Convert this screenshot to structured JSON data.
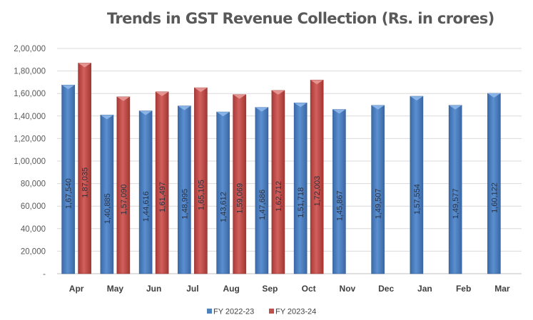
{
  "chart_data": {
    "type": "bar",
    "title": "Trends in GST Revenue Collection (Rs. in crores)",
    "xlabel": "",
    "ylabel": "",
    "ylim": [
      0,
      200000
    ],
    "grid": true,
    "legend_position": "bottom",
    "categories": [
      "Apr",
      "May",
      "Jun",
      "Jul",
      "Aug",
      "Sep",
      "Oct",
      "Nov",
      "Dec",
      "Jan",
      "Feb",
      "Mar"
    ],
    "y_ticks": [
      0,
      20000,
      40000,
      60000,
      80000,
      100000,
      120000,
      140000,
      160000,
      180000,
      200000
    ],
    "y_tick_labels": [
      "-",
      "20,000",
      "40,000",
      "60,000",
      "80,000",
      "1,00,000",
      "1,20,000",
      "1,40,000",
      "1,60,000",
      "1,80,000",
      "2,00,000"
    ],
    "series": [
      {
        "name": "FY 2022-23",
        "color": "#4f81bd",
        "values": [
          167540,
          140885,
          144616,
          148995,
          143612,
          147686,
          151718,
          145867,
          149507,
          157554,
          149577,
          160122
        ],
        "labels": [
          "1,67,540",
          "1,40,885",
          "1,44,616",
          "1,48,995",
          "1,43,612",
          "1,47,686",
          "1,51,718",
          "1,45,867",
          "1,49,507",
          "1,57,554",
          "1,49,577",
          "1,60,122"
        ]
      },
      {
        "name": "FY 2023-24",
        "color": "#c0504d",
        "values": [
          187035,
          157090,
          161497,
          165105,
          159069,
          162712,
          172003,
          null,
          null,
          null,
          null,
          null
        ],
        "labels": [
          "1,87,035",
          "1,57,090",
          "1,61,497",
          "1,65,105",
          "1,59,069",
          "1,62,712",
          "1,72,003",
          null,
          null,
          null,
          null,
          null
        ]
      }
    ]
  }
}
